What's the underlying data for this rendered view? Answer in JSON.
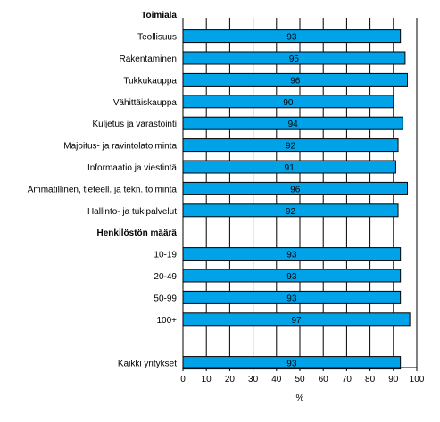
{
  "chart_data": {
    "type": "bar",
    "orientation": "horizontal",
    "groups": [
      {
        "header": "Toimiala",
        "categories": [
          "Teollisuus",
          "Rakentaminen",
          "Tukkukauppa",
          "Vähittäiskauppa",
          "Kuljetus ja varastointi",
          "Majoitus- ja ravintolatoiminta",
          "Informaatio ja viestintä",
          "Ammatillinen, tieteell. ja tekn. toiminta",
          "Hallinto- ja tukipalvelut"
        ],
        "values": [
          93,
          95,
          96,
          90,
          94,
          92,
          91,
          96,
          92
        ]
      },
      {
        "header": "Henkilöstön määrä",
        "categories": [
          "10-19",
          "20-49",
          "50-99",
          "100+"
        ],
        "values": [
          93,
          93,
          93,
          97
        ]
      },
      {
        "header": "",
        "categories": [
          "Kaikki yritykset"
        ],
        "values": [
          93
        ]
      }
    ],
    "xlabel": "%",
    "xlim": [
      0,
      100
    ],
    "xticks": [
      0,
      10,
      20,
      30,
      40,
      50,
      60,
      70,
      80,
      90,
      100
    ],
    "grid": "vertical",
    "bar_color": "#00a2e8",
    "bar_edge_color": "#000000",
    "legend": "none"
  }
}
